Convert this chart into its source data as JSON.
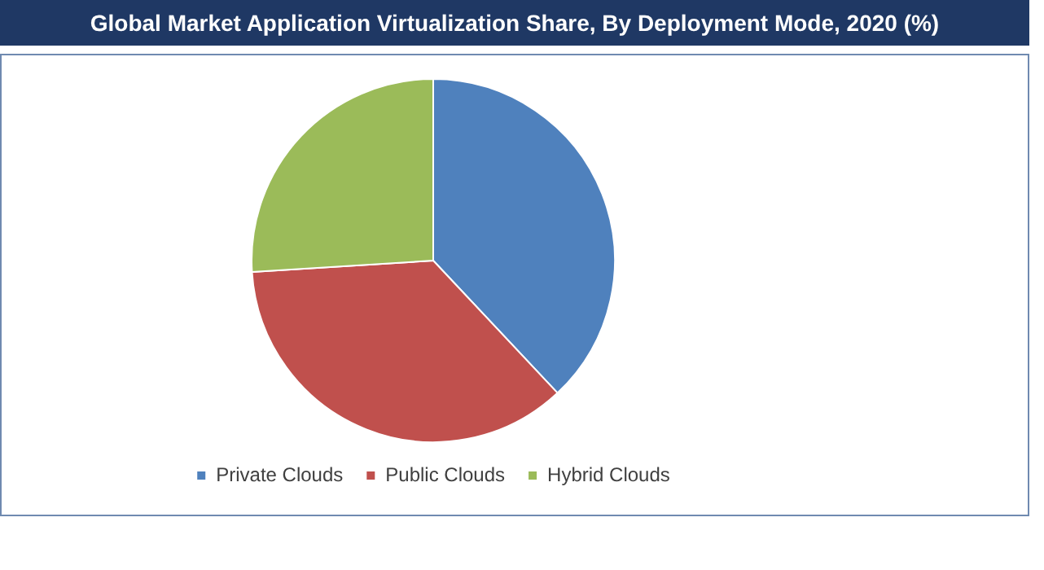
{
  "chart_data": {
    "type": "pie",
    "title": "Global Market Application Virtualization Share, By Deployment Mode, 2020 (%)",
    "categories": [
      "Private Clouds",
      "Public Clouds",
      "Hybrid Clouds"
    ],
    "values": [
      38,
      36,
      26
    ],
    "colors": [
      "#4f81bd",
      "#c0504d",
      "#9bbb59"
    ],
    "legend": "bottom"
  }
}
